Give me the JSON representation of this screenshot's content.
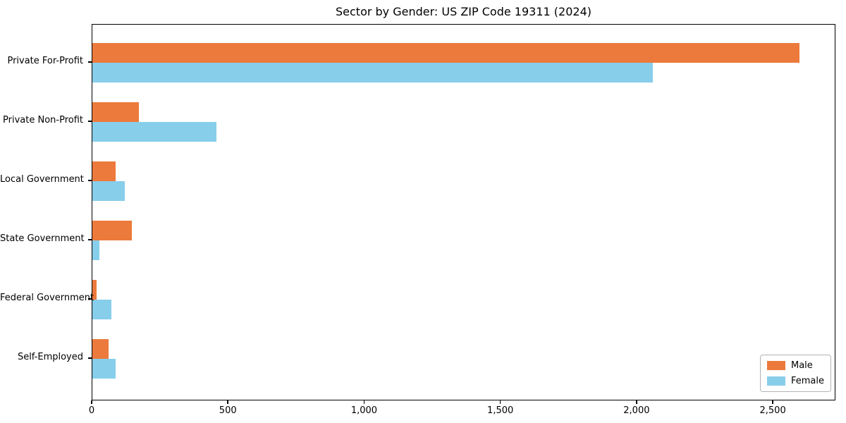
{
  "chart_data": {
    "type": "bar",
    "orientation": "horizontal",
    "title": "Sector by Gender: US ZIP Code 19311 (2024)",
    "categories": [
      "Private For-Profit",
      "Private Non-Profit",
      "Local Government",
      "State Government",
      "Federal Government",
      "Self-Employed"
    ],
    "series": [
      {
        "name": "Male",
        "color": "#ec7a3c",
        "values": [
          2600,
          170,
          85,
          145,
          15,
          60
        ]
      },
      {
        "name": "Female",
        "color": "#87ceeb",
        "values": [
          2060,
          455,
          120,
          25,
          70,
          85
        ]
      }
    ],
    "xlabel": "",
    "ylabel": "",
    "xlim": [
      0,
      2730
    ],
    "xticks": [
      0,
      500,
      1000,
      1500,
      2000,
      2500
    ],
    "xtick_labels": [
      "0",
      "500",
      "1,000",
      "1,500",
      "2,000",
      "2,500"
    ],
    "legend_position": "lower right",
    "grid": false,
    "background_color": "#ffffff",
    "spine_color": "#000000"
  }
}
